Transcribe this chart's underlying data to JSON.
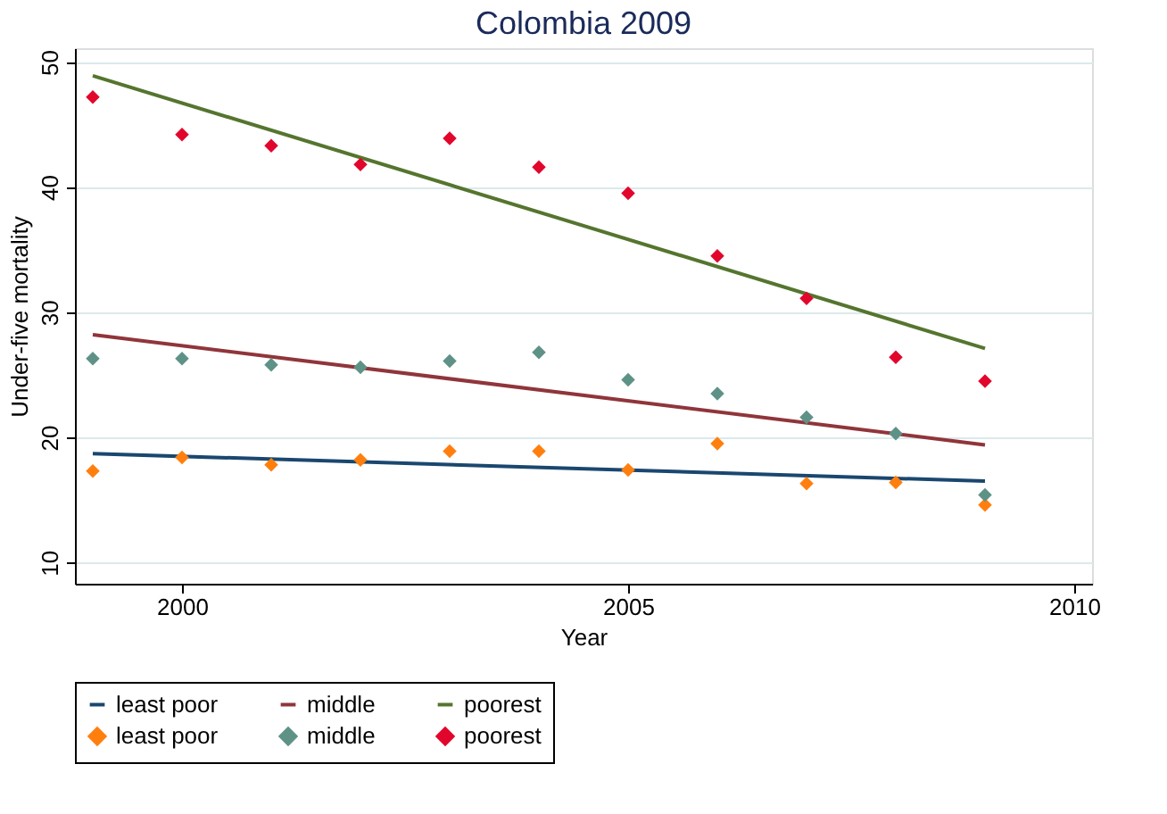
{
  "chart_data": {
    "type": "scatter",
    "title": "Colombia 2009",
    "xlabel": "Year",
    "ylabel": "Under-five mortality",
    "xlim": [
      1998.8,
      2010.2
    ],
    "xticks": [
      2000,
      2005,
      2010
    ],
    "ylim": [
      8.3,
      51.1
    ],
    "yticks": [
      10,
      20,
      30,
      40,
      50
    ],
    "grid": "y",
    "legend": "bottom",
    "series": [
      {
        "name": "least poor",
        "type": "line",
        "marker": "none",
        "color": "#1a476f",
        "x": [
          1999,
          2009
        ],
        "values": [
          18.7,
          16.5
        ]
      },
      {
        "name": "middle",
        "type": "line",
        "marker": "none",
        "color": "#90353b",
        "x": [
          1999,
          2009
        ],
        "values": [
          28.2,
          19.4
        ]
      },
      {
        "name": "poorest",
        "type": "line",
        "marker": "none",
        "color": "#55752f",
        "x": [
          1999,
          2009
        ],
        "values": [
          48.9,
          27.1
        ]
      },
      {
        "name": "least poor",
        "marker": "diamond",
        "color": "#ff7f0e",
        "x": [
          1999,
          2000,
          2001,
          2002,
          2003,
          2004,
          2005,
          2006,
          2007,
          2008,
          2009
        ],
        "values": [
          17.3,
          18.4,
          17.8,
          18.2,
          18.9,
          18.9,
          17.4,
          19.5,
          16.3,
          16.4,
          14.6
        ]
      },
      {
        "name": "middle",
        "marker": "diamond",
        "color": "#5f9287",
        "x": [
          1999,
          2000,
          2001,
          2002,
          2003,
          2004,
          2005,
          2006,
          2007,
          2008,
          2009
        ],
        "values": [
          26.3,
          26.3,
          25.8,
          25.6,
          26.1,
          26.8,
          24.6,
          23.5,
          21.6,
          20.3,
          15.4
        ]
      },
      {
        "name": "poorest",
        "marker": "diamond",
        "color": "#e2062c",
        "x": [
          1999,
          2000,
          2001,
          2002,
          2003,
          2004,
          2005,
          2006,
          2007,
          2008,
          2009
        ],
        "values": [
          47.2,
          44.2,
          43.3,
          41.8,
          43.9,
          41.6,
          39.5,
          34.5,
          31.1,
          26.4,
          24.5
        ]
      }
    ]
  }
}
